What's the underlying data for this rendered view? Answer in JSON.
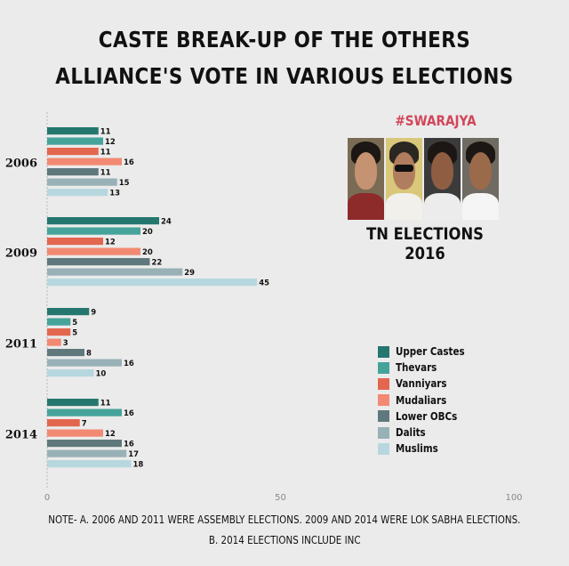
{
  "title": {
    "line1": "CASTE BREAK-UP OF THE OTHERS",
    "line2": "ALLIANCE'S VOTE IN VARIOUS ELECTIONS"
  },
  "brand": "#SWARAJYA",
  "badge": "TN ELECTIONS 2016",
  "notes": {
    "line1": "NOTE-  A. 2006 AND 2011 WERE ASSEMBLY ELECTIONS. 2009 AND 2014 WERE LOK SABHA ELECTIONS.",
    "line2": "B. 2014 ELECTIONS INCLUDE INC"
  },
  "colors": {
    "Upper Castes": "#24776f",
    "Thevars": "#45a39a",
    "Vanniyars": "#e3664f",
    "Mudaliars": "#f28a73",
    "Lower OBCs": "#5f787c",
    "Dalits": "#98b1b6",
    "Muslims": "#b7d7de"
  },
  "chart_data": {
    "type": "bar",
    "orientation": "horizontal",
    "categories": [
      "2006",
      "2009",
      "2011",
      "2014"
    ],
    "series": [
      {
        "name": "Upper Castes",
        "values": [
          11,
          24,
          9,
          11
        ]
      },
      {
        "name": "Thevars",
        "values": [
          12,
          20,
          5,
          16
        ]
      },
      {
        "name": "Vanniyars",
        "values": [
          11,
          12,
          5,
          7
        ]
      },
      {
        "name": "Mudaliars",
        "values": [
          16,
          20,
          3,
          12
        ]
      },
      {
        "name": "Lower OBCs",
        "values": [
          11,
          22,
          8,
          16
        ]
      },
      {
        "name": "Dalits",
        "values": [
          15,
          29,
          16,
          17
        ]
      },
      {
        "name": "Muslims",
        "values": [
          13,
          45,
          10,
          18
        ]
      }
    ],
    "xlim": [
      0,
      100
    ],
    "xticks": [
      "0",
      "50",
      "100"
    ],
    "legend_position": "right",
    "grid": false
  }
}
